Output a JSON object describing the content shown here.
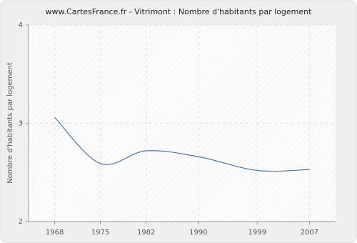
{
  "chart_data": {
    "type": "line",
    "title": "www.CartesFrance.fr - Vitrimont : Nombre d'habitants par logement",
    "y_label": "Nombre d'habitants par logement",
    "x": [
      1968,
      1975,
      1982,
      1990,
      1999,
      2007
    ],
    "series": [
      {
        "name": "Vitrimont",
        "color": "#4a76a8",
        "values": [
          3.06,
          2.59,
          2.72,
          2.66,
          2.52,
          2.53
        ]
      }
    ],
    "xlim": [
      1964,
      2011
    ],
    "xticks": [
      1968,
      1975,
      1982,
      1990,
      1999,
      2007
    ],
    "ylim": [
      2,
      4
    ],
    "yticks": [
      2,
      3,
      4
    ],
    "grid": true
  }
}
